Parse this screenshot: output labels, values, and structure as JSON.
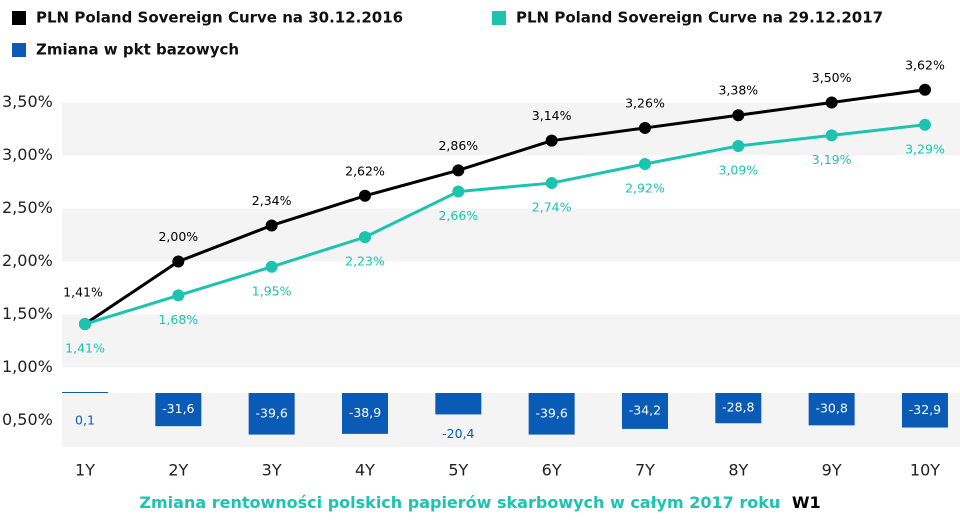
{
  "chart_data": {
    "type": "line",
    "categories": [
      "1Y",
      "2Y",
      "3Y",
      "4Y",
      "5Y",
      "6Y",
      "7Y",
      "8Y",
      "9Y",
      "10Y"
    ],
    "series": [
      {
        "name": "PLN Poland Sovereign Curve na 30.12.2016",
        "color": "#000000",
        "type": "line",
        "values": [
          1.41,
          2.0,
          2.34,
          2.62,
          2.86,
          3.14,
          3.26,
          3.38,
          3.5,
          3.62
        ],
        "value_labels": [
          "1,41%",
          "2,00%",
          "2,34%",
          "2,62%",
          "2,86%",
          "3,14%",
          "3,26%",
          "3,38%",
          "3,50%",
          "3,62%"
        ]
      },
      {
        "name": "PLN Poland Sovereign Curve na 29.12.2017",
        "color": "#1cc4b0",
        "type": "line",
        "values": [
          1.41,
          1.68,
          1.95,
          2.23,
          2.66,
          2.74,
          2.92,
          3.09,
          3.19,
          3.29
        ],
        "value_labels": [
          "1,41%",
          "1,68%",
          "1,95%",
          "2,23%",
          "2,66%",
          "2,74%",
          "2,92%",
          "3,09%",
          "3,19%",
          "3,29%"
        ]
      },
      {
        "name": "Zmiana w pkt bazowych",
        "color": "#0a5bb5",
        "type": "bar",
        "values": [
          0.1,
          -31.6,
          -39.6,
          -38.9,
          -20.4,
          -39.6,
          -34.2,
          -28.8,
          -30.8,
          -32.9
        ],
        "value_labels": [
          "0,1",
          "-31,6",
          "-39,6",
          "-38,9",
          "-20,4",
          "-39,6",
          "-34,2",
          "-28,8",
          "-30,8",
          "-32,9"
        ]
      }
    ],
    "ylim": [
      0.25,
      3.75
    ],
    "yticks": [
      {
        "value": 0.5,
        "label": "0,50%"
      },
      {
        "value": 1.0,
        "label": "1,00%"
      },
      {
        "value": 1.5,
        "label": "1,50%"
      },
      {
        "value": 2.0,
        "label": "2,00%"
      },
      {
        "value": 2.5,
        "label": "2,50%"
      },
      {
        "value": 3.0,
        "label": "3,00%"
      },
      {
        "value": 3.5,
        "label": "3,50%"
      }
    ],
    "caption": "Zmiana rentowności polskich papierów skarbowych w całym 2017 roku",
    "caption_tag": "W1"
  }
}
